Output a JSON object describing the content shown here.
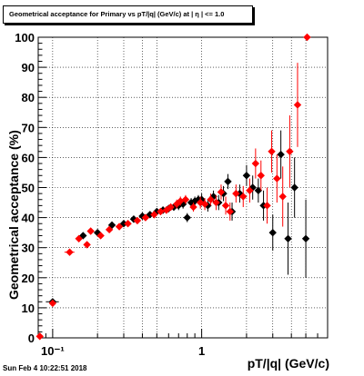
{
  "title": "Geometrical acceptance for Primary vs pT/|q| (GeV/c) at |  η  | <= 1.0",
  "timestamp": "Sun Feb  4 10:22:51 2018",
  "colors": {
    "series_a": "#000000",
    "series_b": "#ff0000",
    "frame": "#000000",
    "grid": "#000000"
  },
  "chart_data": {
    "type": "scatter",
    "xscale": "log",
    "xlim": [
      0.08,
      7.0
    ],
    "ylim": [
      0,
      100
    ],
    "xlabel": "pT/|q| (GeV/c)",
    "ylabel": "Geometrical acceptance (%)",
    "grid": true,
    "legend": "none",
    "xticks": [
      {
        "v": 0.1,
        "label": "10⁻¹"
      },
      {
        "v": 1,
        "label": "1"
      }
    ],
    "yticks": [
      0,
      10,
      20,
      30,
      40,
      50,
      60,
      70,
      80,
      90,
      100
    ],
    "series": [
      {
        "marker": "diamond",
        "color": "#000000",
        "points": [
          {
            "x": 0.1,
            "y": 12.0,
            "yerr": 0.5,
            "xerr": 0.01
          },
          {
            "x": 0.16,
            "y": 34.0,
            "yerr": 1.0
          },
          {
            "x": 0.2,
            "y": 35.0,
            "yerr": 1.0
          },
          {
            "x": 0.25,
            "y": 37.5,
            "yerr": 1.0
          },
          {
            "x": 0.3,
            "y": 38.0,
            "yerr": 1.0
          },
          {
            "x": 0.35,
            "y": 39.5,
            "yerr": 1.0
          },
          {
            "x": 0.4,
            "y": 40.5,
            "yerr": 1.0
          },
          {
            "x": 0.45,
            "y": 41.0,
            "yerr": 1.0
          },
          {
            "x": 0.5,
            "y": 42.0,
            "yerr": 1.0
          },
          {
            "x": 0.55,
            "y": 42.5,
            "yerr": 1.2
          },
          {
            "x": 0.6,
            "y": 43.0,
            "yerr": 1.2
          },
          {
            "x": 0.65,
            "y": 43.5,
            "yerr": 1.2
          },
          {
            "x": 0.7,
            "y": 44.0,
            "yerr": 1.5
          },
          {
            "x": 0.75,
            "y": 44.5,
            "yerr": 1.5
          },
          {
            "x": 0.8,
            "y": 40.0,
            "yerr": 1.5
          },
          {
            "x": 0.85,
            "y": 45.0,
            "yerr": 1.5
          },
          {
            "x": 0.9,
            "y": 45.5,
            "yerr": 1.5
          },
          {
            "x": 0.95,
            "y": 46.0,
            "yerr": 1.5
          },
          {
            "x": 1.0,
            "y": 46.0,
            "yerr": 2.0
          },
          {
            "x": 1.1,
            "y": 44.0,
            "yerr": 2.0
          },
          {
            "x": 1.2,
            "y": 47.0,
            "yerr": 2.0
          },
          {
            "x": 1.3,
            "y": 45.0,
            "yerr": 2.5
          },
          {
            "x": 1.4,
            "y": 48.0,
            "yerr": 2.5
          },
          {
            "x": 1.5,
            "y": 52.0,
            "yerr": 2.5
          },
          {
            "x": 1.6,
            "y": 42.0,
            "yerr": 3.0
          },
          {
            "x": 1.8,
            "y": 48.0,
            "yerr": 3.0
          },
          {
            "x": 2.0,
            "y": 54.0,
            "yerr": 3.5
          },
          {
            "x": 2.2,
            "y": 50.0,
            "yerr": 4.0
          },
          {
            "x": 2.4,
            "y": 49.0,
            "yerr": 4.0
          },
          {
            "x": 2.6,
            "y": 44.0,
            "yerr": 5.0
          },
          {
            "x": 3.0,
            "y": 35.0,
            "yerr": 6.0
          },
          {
            "x": 3.4,
            "y": 61.0,
            "yerr": 8.0
          },
          {
            "x": 3.8,
            "y": 33.0,
            "yerr": 12.0
          },
          {
            "x": 4.2,
            "y": 50.0,
            "yerr": 10.0
          },
          {
            "x": 5.0,
            "y": 33.0,
            "yerr": 13.0
          }
        ]
      },
      {
        "marker": "diamond",
        "color": "#ff0000",
        "points": [
          {
            "x": 0.082,
            "y": 0.5,
            "yerr": 0.3
          },
          {
            "x": 0.1,
            "y": 11.5,
            "yerr": 0.5
          },
          {
            "x": 0.13,
            "y": 28.5,
            "yerr": 1.0,
            "xerr": 0.01
          },
          {
            "x": 0.15,
            "y": 33.0,
            "yerr": 1.0
          },
          {
            "x": 0.17,
            "y": 31.0,
            "yerr": 1.0
          },
          {
            "x": 0.18,
            "y": 35.5,
            "yerr": 1.0
          },
          {
            "x": 0.21,
            "y": 34.0,
            "yerr": 1.0
          },
          {
            "x": 0.24,
            "y": 36.0,
            "yerr": 1.0
          },
          {
            "x": 0.28,
            "y": 37.0,
            "yerr": 1.0
          },
          {
            "x": 0.32,
            "y": 38.0,
            "yerr": 1.0
          },
          {
            "x": 0.37,
            "y": 39.0,
            "yerr": 1.0
          },
          {
            "x": 0.42,
            "y": 40.0,
            "yerr": 1.0
          },
          {
            "x": 0.48,
            "y": 41.0,
            "yerr": 1.2
          },
          {
            "x": 0.53,
            "y": 42.0,
            "yerr": 1.2
          },
          {
            "x": 0.58,
            "y": 42.5,
            "yerr": 1.2
          },
          {
            "x": 0.62,
            "y": 43.5,
            "yerr": 1.2
          },
          {
            "x": 0.68,
            "y": 44.5,
            "yerr": 1.5
          },
          {
            "x": 0.72,
            "y": 45.5,
            "yerr": 1.5
          },
          {
            "x": 0.78,
            "y": 46.0,
            "yerr": 1.5
          },
          {
            "x": 0.88,
            "y": 43.5,
            "yerr": 1.5
          },
          {
            "x": 0.98,
            "y": 45.0,
            "yerr": 2.0
          },
          {
            "x": 1.05,
            "y": 44.5,
            "yerr": 2.0
          },
          {
            "x": 1.15,
            "y": 46.0,
            "yerr": 2.0
          },
          {
            "x": 1.25,
            "y": 45.0,
            "yerr": 2.5
          },
          {
            "x": 1.35,
            "y": 48.5,
            "yerr": 2.5
          },
          {
            "x": 1.45,
            "y": 44.0,
            "yerr": 3.0
          },
          {
            "x": 1.55,
            "y": 42.0,
            "yerr": 3.0
          },
          {
            "x": 1.7,
            "y": 48.0,
            "yerr": 3.0
          },
          {
            "x": 1.9,
            "y": 47.0,
            "yerr": 3.5
          },
          {
            "x": 2.1,
            "y": 49.0,
            "yerr": 4.0
          },
          {
            "x": 2.3,
            "y": 58.0,
            "yerr": 5.0
          },
          {
            "x": 2.5,
            "y": 54.0,
            "yerr": 5.0
          },
          {
            "x": 2.75,
            "y": 44.0,
            "yerr": 6.0
          },
          {
            "x": 2.95,
            "y": 62.0,
            "yerr": 7.0
          },
          {
            "x": 3.2,
            "y": 53.0,
            "yerr": 8.0
          },
          {
            "x": 3.5,
            "y": 47.0,
            "yerr": 10.0
          },
          {
            "x": 3.9,
            "y": 62.0,
            "yerr": 12.0
          },
          {
            "x": 4.4,
            "y": 77.5,
            "yerr": 14.0
          },
          {
            "x": 5.1,
            "y": 100.0,
            "yerr": 0.5
          }
        ]
      }
    ]
  }
}
